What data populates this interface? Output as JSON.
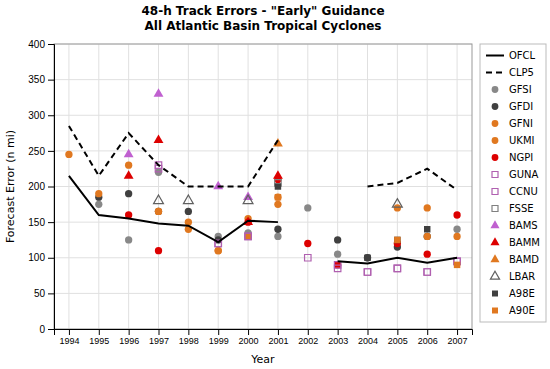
{
  "chart_data": {
    "type": "line",
    "title": "48-h Track Errors - \"Early\" Guidance\nAll Atlantic Basin Tropical Cyclones",
    "xlabel": "Year",
    "ylabel": "Forecast Error (n mi)",
    "x": [
      1994,
      1995,
      1996,
      1997,
      1998,
      1999,
      2000,
      2001,
      2002,
      2003,
      2004,
      2005,
      2006,
      2007
    ],
    "xlim": [
      1993.5,
      2007.5
    ],
    "xticks": [
      1994,
      1995,
      1996,
      1997,
      1998,
      1999,
      2000,
      2001,
      2002,
      2003,
      2004,
      2005,
      2006,
      2007
    ],
    "ylim": [
      0,
      400
    ],
    "yticks": [
      0,
      50,
      100,
      150,
      200,
      250,
      300,
      350,
      400
    ],
    "grid": true,
    "legend": "right",
    "series": [
      {
        "name": "OFCL",
        "type": "line",
        "color": "#000000",
        "line_style": "solid",
        "values": [
          215,
          160,
          155,
          148,
          145,
          122,
          152,
          150,
          null,
          95,
          92,
          100,
          93,
          100
        ]
      },
      {
        "name": "CLP5",
        "type": "line",
        "color": "#000000",
        "line_style": "dashed",
        "values": [
          285,
          215,
          275,
          230,
          200,
          200,
          200,
          265,
          null,
          null,
          200,
          205,
          225,
          195
        ]
      },
      {
        "name": "GFSI",
        "type": "scatter",
        "color": "#888888",
        "marker": "circle",
        "values": [
          null,
          175,
          125,
          220,
          null,
          130,
          135,
          130,
          170,
          105,
          100,
          null,
          null,
          140
        ]
      },
      {
        "name": "GFDI",
        "type": "scatter",
        "color": "#404040",
        "marker": "circle",
        "values": [
          null,
          185,
          190,
          165,
          165,
          125,
          130,
          140,
          null,
          125,
          100,
          115,
          130,
          null
        ]
      },
      {
        "name": "GFNI",
        "type": "scatter",
        "color": "#e07820",
        "marker": "circle",
        "values": [
          245,
          190,
          230,
          165,
          140,
          110,
          130,
          185,
          null,
          null,
          null,
          170,
          170,
          130
        ]
      },
      {
        "name": "UKMI",
        "type": "scatter",
        "color": "#e07820",
        "marker": "circle",
        "values": [
          null,
          null,
          null,
          165,
          150,
          110,
          155,
          175,
          null,
          null,
          null,
          null,
          130,
          null
        ]
      },
      {
        "name": "NGPI",
        "type": "scatter",
        "color": "#dd0000",
        "marker": "circle",
        "values": [
          null,
          null,
          160,
          110,
          null,
          null,
          150,
          210,
          120,
          90,
          null,
          120,
          105,
          160
        ]
      },
      {
        "name": "GUNA",
        "type": "scatter",
        "color": "#b060b0",
        "marker": "open-square",
        "values": [
          null,
          null,
          null,
          230,
          null,
          120,
          130,
          null,
          100,
          85,
          80,
          85,
          80,
          95
        ]
      },
      {
        "name": "CCNU",
        "type": "scatter",
        "color": "#b060b0",
        "marker": "open-square",
        "values": [
          null,
          null,
          null,
          225,
          null,
          120,
          130,
          null,
          null,
          90,
          80,
          85,
          80,
          95
        ]
      },
      {
        "name": "FSSE",
        "type": "scatter",
        "color": "#808080",
        "marker": "open-square",
        "values": [
          null,
          null,
          null,
          null,
          null,
          null,
          null,
          205,
          null,
          null,
          null,
          null,
          null,
          null
        ]
      },
      {
        "name": "BAMS",
        "type": "scatter",
        "color": "#c060d0",
        "marker": "triangle",
        "values": [
          null,
          null,
          245,
          330,
          null,
          200,
          185,
          null,
          null,
          null,
          null,
          null,
          null,
          null
        ]
      },
      {
        "name": "BAMM",
        "type": "scatter",
        "color": "#dd0000",
        "marker": "triangle",
        "values": [
          null,
          null,
          215,
          265,
          null,
          null,
          150,
          215,
          null,
          null,
          null,
          null,
          null,
          null
        ]
      },
      {
        "name": "BAMD",
        "type": "scatter",
        "color": "#e07820",
        "marker": "triangle",
        "values": [
          null,
          null,
          null,
          null,
          null,
          null,
          null,
          260,
          null,
          null,
          null,
          null,
          null,
          null
        ]
      },
      {
        "name": "LBAR",
        "type": "scatter",
        "color": "#606060",
        "marker": "open-triangle",
        "values": [
          null,
          null,
          null,
          180,
          180,
          null,
          180,
          null,
          null,
          null,
          null,
          175,
          null,
          null
        ]
      },
      {
        "name": "A98E",
        "type": "scatter",
        "color": "#404040",
        "marker": "square",
        "values": [
          null,
          null,
          null,
          null,
          null,
          null,
          null,
          200,
          null,
          null,
          100,
          125,
          140,
          null
        ]
      },
      {
        "name": "A90E",
        "type": "scatter",
        "color": "#e07820",
        "marker": "square",
        "values": [
          null,
          null,
          null,
          null,
          null,
          null,
          null,
          185,
          null,
          null,
          null,
          125,
          null,
          90
        ]
      }
    ]
  }
}
